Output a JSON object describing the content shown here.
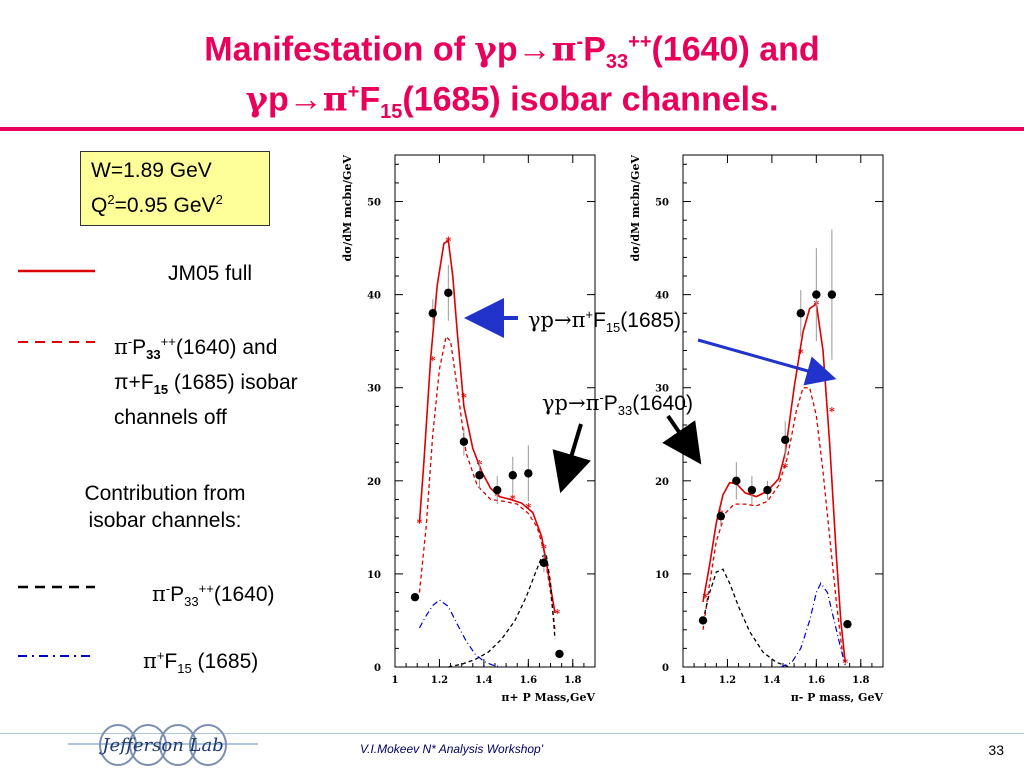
{
  "slide": {
    "title_line1": {
      "a": "Manifestation of ",
      "g": "γ",
      "b": "p→",
      "pi": "π",
      "sup1": "-",
      "c": "P",
      "sub1": "33",
      "sup2": "++",
      "d": "(1640) and"
    },
    "title_line2": {
      "g": "γ",
      "b": "p→",
      "pi": "π",
      "sup1": "+",
      "c": "F",
      "sub1": "15",
      "d": "(1685) isobar channels."
    },
    "kinematics": {
      "w": "W=1.89 GeV",
      "q2_a": "Q",
      "q2_sup": "2",
      "q2_b": "=0.95 GeV",
      "q2_sup2": "2"
    },
    "legend": {
      "full": "JM05 full",
      "off_line1_a": "π",
      "off_line1_sup": "-",
      "off_line1_b": "P",
      "off_line1_sub": "33",
      "off_line1_sup2": "++",
      "off_line1_c": "(1640) and",
      "off_line2_a": "π+F",
      "off_line2_sub": "15",
      "off_line2_c": " (1685) isobar",
      "off_line3": "channels off",
      "contrib_line1": "Contribution from",
      "contrib_line2": "isobar channels:",
      "p33_a": "π",
      "p33_sup": "-",
      "p33_b": "P",
      "p33_sub": "33",
      "p33_sup2": "++",
      "p33_c": "(1640)",
      "f15_a": "π",
      "f15_sup": "+",
      "f15_b": "F",
      "f15_sub": "15",
      "f15_c": " (1685)"
    },
    "annotations": {
      "f15_a": "γp→π",
      "f15_sup": "+",
      "f15_b": "F",
      "f15_sub": "15",
      "f15_c": "(1685)",
      "p33_a": "γp→π",
      "p33_sup": "-",
      "p33_b": "P",
      "p33_sub": "33",
      "p33_c": "(1640)"
    },
    "footer": {
      "author": "V.I.Mokeev  N* Analysis Workshop'",
      "page": "33",
      "logo_text": "Jefferson Lab"
    },
    "colors": {
      "title": "#e8005a",
      "full_curve": "#dd0000",
      "isobar_off": "#dd0000",
      "p33_contrib": "#000000",
      "f15_contrib": "#0000cc",
      "arrow_blue": "#2233cc",
      "kin_box": "#ffff99"
    }
  },
  "chart_data": [
    {
      "type": "scatter",
      "xlabel": "π+ P Mass,GeV",
      "ylabel": "dσ/dM mcbn/GeV",
      "xlim": [
        1.0,
        1.9
      ],
      "ylim": [
        0,
        55
      ],
      "xticks": [
        1,
        1.2,
        1.4,
        1.6,
        1.8
      ],
      "xtick_labels": [
        "1",
        "1.2",
        "1.4",
        "1.6",
        "1.8"
      ],
      "yticks": [
        0,
        10,
        20,
        30,
        40,
        50
      ],
      "ytick_labels": [
        "0",
        "10",
        "20",
        "30",
        "40",
        "50"
      ],
      "data": [
        {
          "x": 1.09,
          "y": 7.5,
          "err": 0
        },
        {
          "x": 1.17,
          "y": 38.0,
          "err": 1.5
        },
        {
          "x": 1.24,
          "y": 40.2,
          "err": 3.0
        },
        {
          "x": 1.31,
          "y": 24.2,
          "err": 1.5
        },
        {
          "x": 1.38,
          "y": 20.6,
          "err": 1.5
        },
        {
          "x": 1.46,
          "y": 19.0,
          "err": 1.5
        },
        {
          "x": 1.53,
          "y": 20.6,
          "err": 2.0
        },
        {
          "x": 1.6,
          "y": 20.8,
          "err": 3.0
        },
        {
          "x": 1.67,
          "y": 11.2,
          "err": 1.0
        },
        {
          "x": 1.74,
          "y": 1.4,
          "err": 0
        }
      ],
      "series": [
        {
          "style": "full",
          "x": [
            1.11,
            1.13,
            1.16,
            1.19,
            1.22,
            1.24,
            1.26,
            1.28,
            1.31,
            1.35,
            1.39,
            1.43,
            1.47,
            1.52,
            1.57,
            1.62,
            1.66,
            1.69,
            1.72
          ],
          "y": [
            15.5,
            22,
            33,
            41,
            45.5,
            45.8,
            42,
            36,
            28,
            23.5,
            21,
            19.2,
            18.3,
            18.0,
            17.6,
            16.6,
            14,
            10,
            5.8
          ],
          "markers_x": [
            1.11,
            1.17,
            1.24,
            1.31,
            1.38,
            1.46,
            1.53,
            1.6,
            1.67,
            1.73
          ],
          "markers_y": [
            15.5,
            33.0,
            45.8,
            29.0,
            21.8,
            18.4,
            18.1,
            17.2,
            12.8,
            5.8
          ]
        },
        {
          "style": "isobar_off",
          "x": [
            1.11,
            1.14,
            1.17,
            1.2,
            1.23,
            1.25,
            1.28,
            1.32,
            1.37,
            1.43,
            1.49,
            1.55,
            1.6,
            1.64,
            1.67,
            1.7,
            1.72
          ],
          "y": [
            8,
            15,
            25,
            32,
            35.5,
            35,
            30,
            23,
            19.5,
            18,
            17.8,
            17.5,
            16.5,
            15,
            12.5,
            8,
            4
          ]
        },
        {
          "style": "p33",
          "x": [
            1.24,
            1.3,
            1.36,
            1.42,
            1.48,
            1.54,
            1.59,
            1.63,
            1.66,
            1.68,
            1.7,
            1.72
          ],
          "y": [
            0,
            0.3,
            0.8,
            1.6,
            3.0,
            5.0,
            7.5,
            10,
            11.8,
            12.2,
            9,
            3
          ]
        },
        {
          "style": "f15",
          "x": [
            1.11,
            1.14,
            1.17,
            1.2,
            1.24,
            1.28,
            1.32,
            1.36,
            1.4,
            1.44,
            1.48
          ],
          "y": [
            4.2,
            5.5,
            6.6,
            7.2,
            6.5,
            4.6,
            2.8,
            1.4,
            0.6,
            0.2,
            0
          ]
        }
      ]
    },
    {
      "type": "scatter",
      "xlabel": "π- P mass, GeV",
      "ylabel": "dσ/dM mcbn/GeV",
      "xlim": [
        1.0,
        1.9
      ],
      "ylim": [
        0,
        55
      ],
      "xticks": [
        1,
        1.2,
        1.4,
        1.6,
        1.8
      ],
      "xtick_labels": [
        "1",
        "1.2",
        "1.4",
        "1.6",
        "1.8"
      ],
      "yticks": [
        0,
        10,
        20,
        30,
        40,
        50
      ],
      "ytick_labels": [
        "0",
        "10",
        "20",
        "30",
        "40",
        "50"
      ],
      "data": [
        {
          "x": 1.09,
          "y": 5.0,
          "err": 0
        },
        {
          "x": 1.17,
          "y": 16.2,
          "err": 1.0
        },
        {
          "x": 1.24,
          "y": 20.0,
          "err": 2.0
        },
        {
          "x": 1.31,
          "y": 19.0,
          "err": 1.5
        },
        {
          "x": 1.38,
          "y": 19.0,
          "err": 1.0
        },
        {
          "x": 1.46,
          "y": 24.4,
          "err": 2.0
        },
        {
          "x": 1.53,
          "y": 38.0,
          "err": 2.5
        },
        {
          "x": 1.6,
          "y": 40.0,
          "err": 5.0
        },
        {
          "x": 1.67,
          "y": 40.0,
          "err": 7.0
        },
        {
          "x": 1.74,
          "y": 4.6,
          "err": 0
        }
      ],
      "series": [
        {
          "style": "full",
          "x": [
            1.09,
            1.12,
            1.15,
            1.18,
            1.21,
            1.24,
            1.28,
            1.33,
            1.38,
            1.43,
            1.46,
            1.5,
            1.54,
            1.57,
            1.6,
            1.63,
            1.66,
            1.69,
            1.71,
            1.73
          ],
          "y": [
            7,
            11,
            15.5,
            18.5,
            19.8,
            19.7,
            18.7,
            18.3,
            18.9,
            20.2,
            23,
            30,
            36,
            38.5,
            39,
            34,
            24,
            12,
            5,
            0.5
          ],
          "markers_x": [
            1.1,
            1.17,
            1.24,
            1.31,
            1.38,
            1.46,
            1.53,
            1.6,
            1.67,
            1.73
          ],
          "markers_y": [
            7.5,
            16.5,
            20.0,
            18.8,
            18.8,
            21.5,
            33.8,
            39.0,
            27.5,
            0.5
          ]
        },
        {
          "style": "isobar_off",
          "x": [
            1.09,
            1.12,
            1.15,
            1.19,
            1.23,
            1.28,
            1.33,
            1.38,
            1.43,
            1.47,
            1.51,
            1.54,
            1.57,
            1.6,
            1.63,
            1.66,
            1.69,
            1.72
          ],
          "y": [
            4,
            9,
            13.5,
            16.5,
            17.5,
            17.5,
            17.3,
            17.8,
            19.5,
            22.5,
            27.5,
            30,
            30,
            27,
            21,
            14,
            7,
            1
          ]
        },
        {
          "style": "p33",
          "x": [
            1.09,
            1.12,
            1.15,
            1.18,
            1.21,
            1.25,
            1.3,
            1.36,
            1.42,
            1.48
          ],
          "y": [
            5,
            8,
            10.2,
            10.5,
            9,
            6.5,
            3.8,
            1.6,
            0.5,
            0
          ]
        },
        {
          "style": "f15",
          "x": [
            1.44,
            1.49,
            1.53,
            1.57,
            1.6,
            1.62,
            1.65,
            1.68,
            1.71,
            1.73
          ],
          "y": [
            0,
            0.5,
            2,
            5,
            8,
            9,
            8,
            5,
            2,
            0.2
          ]
        }
      ]
    }
  ]
}
